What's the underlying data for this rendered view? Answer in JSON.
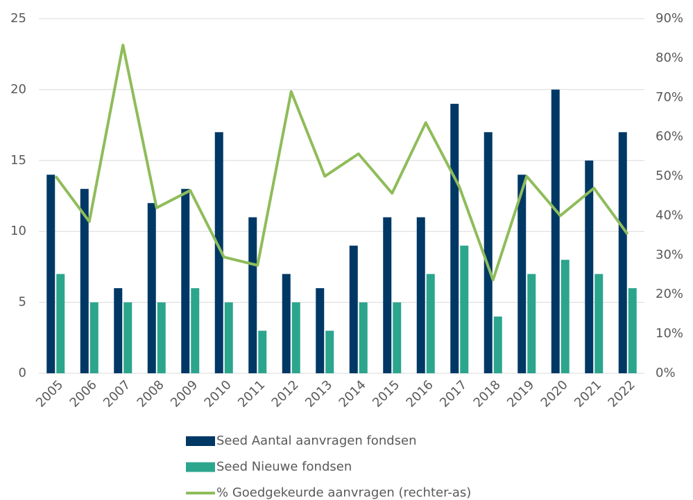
{
  "chart_data": {
    "type": "bar_line",
    "categories": [
      "2005",
      "2006",
      "2007",
      "2008",
      "2009",
      "2010",
      "2011",
      "2012",
      "2013",
      "2014",
      "2015",
      "2016",
      "2017",
      "2018",
      "2019",
      "2020",
      "2021",
      "2022"
    ],
    "series": [
      {
        "name": "Seed Aantal aanvragen fondsen",
        "color": "#003865",
        "type": "bar",
        "values": [
          14,
          13,
          6,
          12,
          13,
          17,
          11,
          7,
          6,
          9,
          11,
          11,
          19,
          17,
          14,
          20,
          15,
          17
        ]
      },
      {
        "name": "Seed Nieuwe fondsen",
        "color": "#2ca58d",
        "type": "bar",
        "values": [
          7,
          5,
          5,
          5,
          6,
          5,
          3,
          5,
          3,
          5,
          5,
          7,
          9,
          4,
          7,
          8,
          7,
          6
        ]
      },
      {
        "name": "% Goedgekeurde aanvragen (rechter-as)",
        "color": "#8fbc5a",
        "type": "line",
        "axis": "y2",
        "values": [
          50,
          38.5,
          83.3,
          42,
          46.4,
          29.5,
          27.4,
          71.5,
          50,
          55.7,
          45.7,
          63.6,
          47.3,
          23.7,
          50,
          40,
          47,
          35.3
        ]
      }
    ],
    "ylim": [
      0,
      25
    ],
    "yticks": [
      0,
      5,
      10,
      15,
      20,
      25
    ],
    "y2lim": [
      0,
      90
    ],
    "y2ticks": [
      {
        "value": 0,
        "label": "0%"
      },
      {
        "value": 10,
        "label": "10%"
      },
      {
        "value": 20,
        "label": "20%"
      },
      {
        "value": 30,
        "label": "30%"
      },
      {
        "value": 40,
        "label": "40%"
      },
      {
        "value": 50,
        "label": "50%"
      },
      {
        "value": 60,
        "label": "60%"
      },
      {
        "value": 70,
        "label": "70%"
      },
      {
        "value": 80,
        "label": "80%"
      },
      {
        "value": 90,
        "label": "90%"
      }
    ],
    "grid": true,
    "legend": "bottom"
  }
}
